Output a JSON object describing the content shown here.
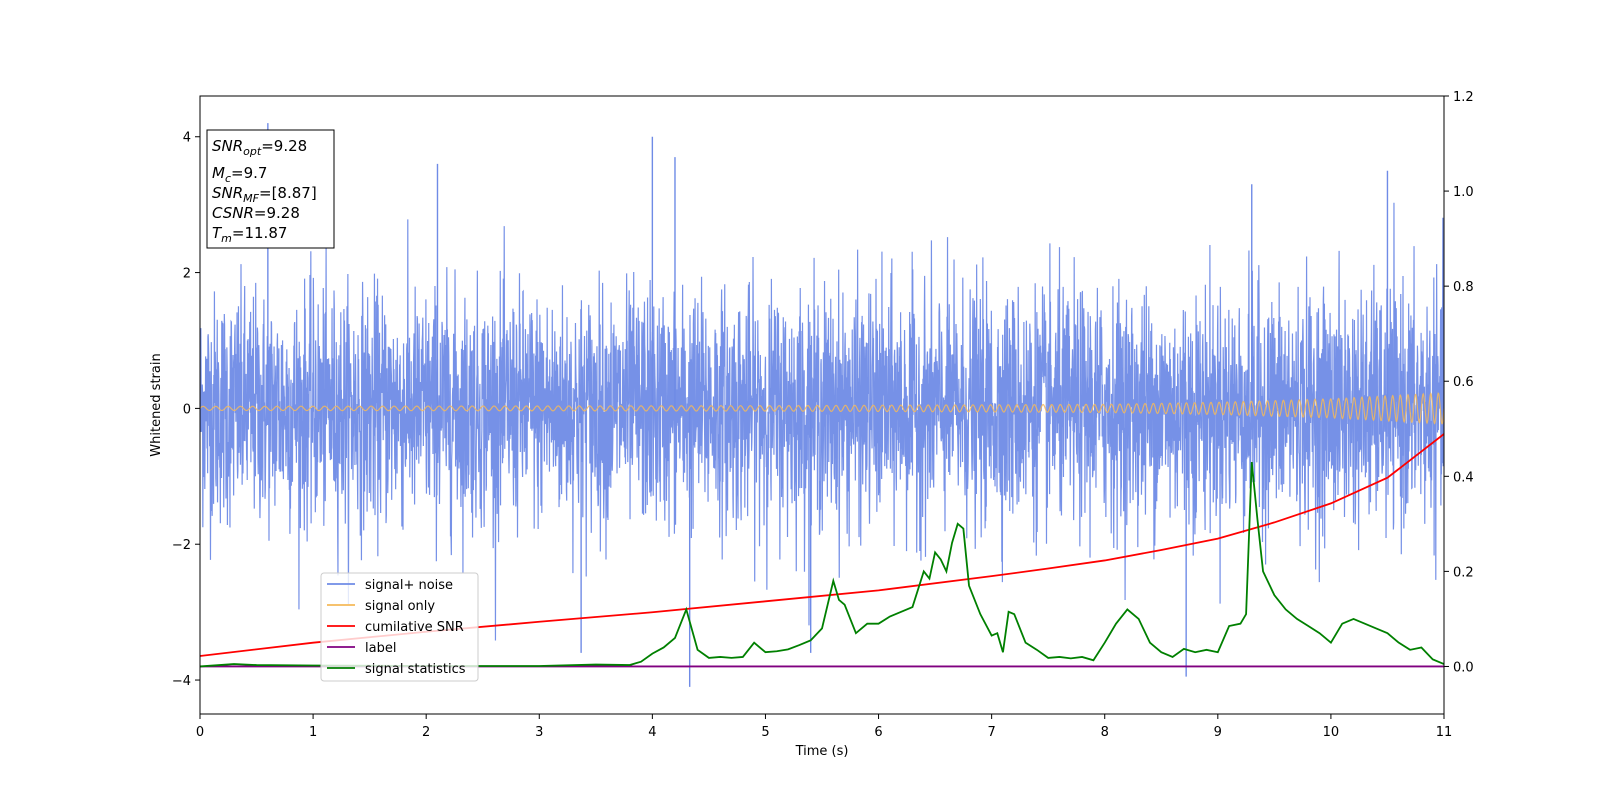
{
  "chart_data": {
    "type": "line",
    "xlabel": "Time (s)",
    "ylabel": "Whitened strain",
    "xlim": [
      0,
      11
    ],
    "ylim_left": [
      -4.5,
      4.6
    ],
    "ylim_right": [
      -0.1,
      1.2
    ],
    "x_ticks": [
      "0",
      "1",
      "2",
      "3",
      "4",
      "5",
      "6",
      "7",
      "8",
      "9",
      "10",
      "11"
    ],
    "y_left_ticks": [
      "−4",
      "−2",
      "0",
      "2",
      "4"
    ],
    "y_right_ticks": [
      "0.0",
      "0.2",
      "0.4",
      "0.6",
      "0.8",
      "1.0",
      "1.2"
    ],
    "legend_position": "lower-left",
    "info_box": {
      "snr_opt": {
        "main": "SNR",
        "sub": "opt",
        "value": "=9.28"
      },
      "mc": {
        "main": "M",
        "sub": "c",
        "value": "=9.7"
      },
      "snr_mf": {
        "main": "SNR",
        "sub": "MF",
        "value": "=[8.87]"
      },
      "csnr": {
        "main": "CSNR",
        "value": "=9.28"
      },
      "tm": {
        "main": "T",
        "sub": "m",
        "value": "=11.87"
      }
    },
    "series": [
      {
        "name": "signal+ noise",
        "color": "#6f8be6",
        "axis": "left",
        "noise_std": 0.85,
        "spikes": [
          [
            0.6,
            4.2
          ],
          [
            2.1,
            3.6
          ],
          [
            4.0,
            4.0
          ],
          [
            4.2,
            3.7
          ],
          [
            4.33,
            -4.1
          ],
          [
            8.72,
            -3.95
          ],
          [
            5.4,
            -3.6
          ],
          [
            3.37,
            -3.6
          ],
          [
            10.5,
            3.5
          ],
          [
            9.3,
            3.3
          ]
        ]
      },
      {
        "name": "signal only",
        "color": "#f5b95a",
        "axis": "left",
        "envelope": [
          [
            0,
            0.03
          ],
          [
            5,
            0.04
          ],
          [
            8,
            0.06
          ],
          [
            9,
            0.09
          ],
          [
            10,
            0.14
          ],
          [
            11,
            0.23
          ]
        ]
      },
      {
        "name": "cumilative SNR",
        "color": "#ff0000",
        "axis": "right",
        "x": [
          0,
          1,
          2,
          3,
          4,
          5,
          6,
          7,
          7.5,
          8,
          8.5,
          9,
          9.5,
          10,
          10.5,
          11
        ],
        "y": [
          0.022,
          0.05,
          0.073,
          0.094,
          0.114,
          0.137,
          0.16,
          0.19,
          0.206,
          0.223,
          0.245,
          0.269,
          0.303,
          0.343,
          0.397,
          0.489
        ]
      },
      {
        "name": "label",
        "color": "#800080",
        "axis": "right",
        "x": [
          0,
          11
        ],
        "y": [
          0.0,
          0.0
        ]
      },
      {
        "name": "signal statistics",
        "color": "#008000",
        "axis": "right",
        "x": [
          0,
          0.3,
          0.5,
          1,
          2,
          3,
          3.5,
          3.8,
          3.9,
          4.0,
          4.1,
          4.2,
          4.3,
          4.4,
          4.5,
          4.6,
          4.7,
          4.8,
          4.9,
          5.0,
          5.1,
          5.2,
          5.3,
          5.4,
          5.5,
          5.6,
          5.65,
          5.7,
          5.8,
          5.9,
          6.0,
          6.1,
          6.2,
          6.3,
          6.4,
          6.45,
          6.5,
          6.55,
          6.6,
          6.65,
          6.7,
          6.75,
          6.8,
          6.9,
          7.0,
          7.05,
          7.1,
          7.15,
          7.2,
          7.3,
          7.4,
          7.5,
          7.6,
          7.7,
          7.8,
          7.9,
          8.0,
          8.1,
          8.2,
          8.3,
          8.4,
          8.5,
          8.6,
          8.7,
          8.8,
          8.9,
          9.0,
          9.1,
          9.2,
          9.25,
          9.3,
          9.35,
          9.4,
          9.5,
          9.6,
          9.7,
          9.8,
          9.9,
          10.0,
          10.1,
          10.2,
          10.3,
          10.4,
          10.5,
          10.6,
          10.7,
          10.8,
          10.9,
          11.0
        ],
        "y": [
          0.0,
          0.005,
          0.003,
          0.002,
          0.001,
          0.001,
          0.004,
          0.003,
          0.01,
          0.027,
          0.04,
          0.06,
          0.12,
          0.035,
          0.018,
          0.02,
          0.018,
          0.02,
          0.05,
          0.03,
          0.032,
          0.036,
          0.045,
          0.055,
          0.08,
          0.18,
          0.14,
          0.13,
          0.07,
          0.09,
          0.09,
          0.105,
          0.115,
          0.125,
          0.2,
          0.185,
          0.24,
          0.225,
          0.2,
          0.26,
          0.3,
          0.29,
          0.17,
          0.11,
          0.065,
          0.07,
          0.03,
          0.115,
          0.11,
          0.05,
          0.035,
          0.018,
          0.02,
          0.017,
          0.02,
          0.013,
          0.05,
          0.09,
          0.12,
          0.1,
          0.05,
          0.03,
          0.02,
          0.037,
          0.03,
          0.035,
          0.03,
          0.085,
          0.09,
          0.11,
          0.43,
          0.31,
          0.2,
          0.15,
          0.12,
          0.1,
          0.085,
          0.07,
          0.05,
          0.09,
          0.1,
          0.09,
          0.08,
          0.07,
          0.05,
          0.035,
          0.04,
          0.015,
          0.005
        ]
      }
    ]
  }
}
